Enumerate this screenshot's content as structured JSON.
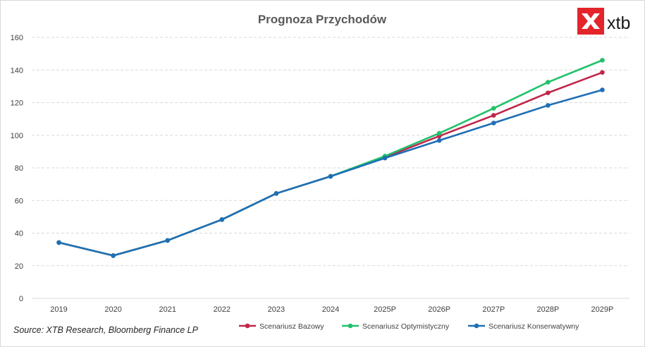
{
  "chart_data": {
    "type": "line",
    "title": "Prognoza Przychodów",
    "categories": [
      "2019",
      "2020",
      "2021",
      "2022",
      "2023",
      "2024",
      "2025P",
      "2026P",
      "2027P",
      "2028P",
      "2029P"
    ],
    "ylim": [
      0,
      160
    ],
    "yticks": [
      0,
      20,
      40,
      60,
      80,
      100,
      120,
      140,
      160
    ],
    "grid": true,
    "legend_position": "bottom",
    "series": [
      {
        "name": "Scenariusz Bazowy",
        "color": "#c0264a",
        "values": [
          34.2,
          26.2,
          35.5,
          48.3,
          64.3,
          74.8,
          86.5,
          99.5,
          112.2,
          126.0,
          138.5
        ]
      },
      {
        "name": "Scenariusz Optymistyczny",
        "color": "#21c16b",
        "values": [
          34.2,
          26.2,
          35.5,
          48.3,
          64.3,
          74.8,
          87.2,
          101.2,
          116.5,
          132.5,
          146.0
        ]
      },
      {
        "name": "Scenariusz Konserwatywny",
        "color": "#1f6fb5",
        "values": [
          34.2,
          26.2,
          35.5,
          48.3,
          64.3,
          74.8,
          86.0,
          96.8,
          107.5,
          118.3,
          127.8
        ]
      }
    ]
  },
  "source_note": "Source: XTB Research, Bloomberg Finance LP",
  "logo": {
    "text": "xtb",
    "icon": "xtb-x-icon",
    "color": "#e3242b"
  }
}
